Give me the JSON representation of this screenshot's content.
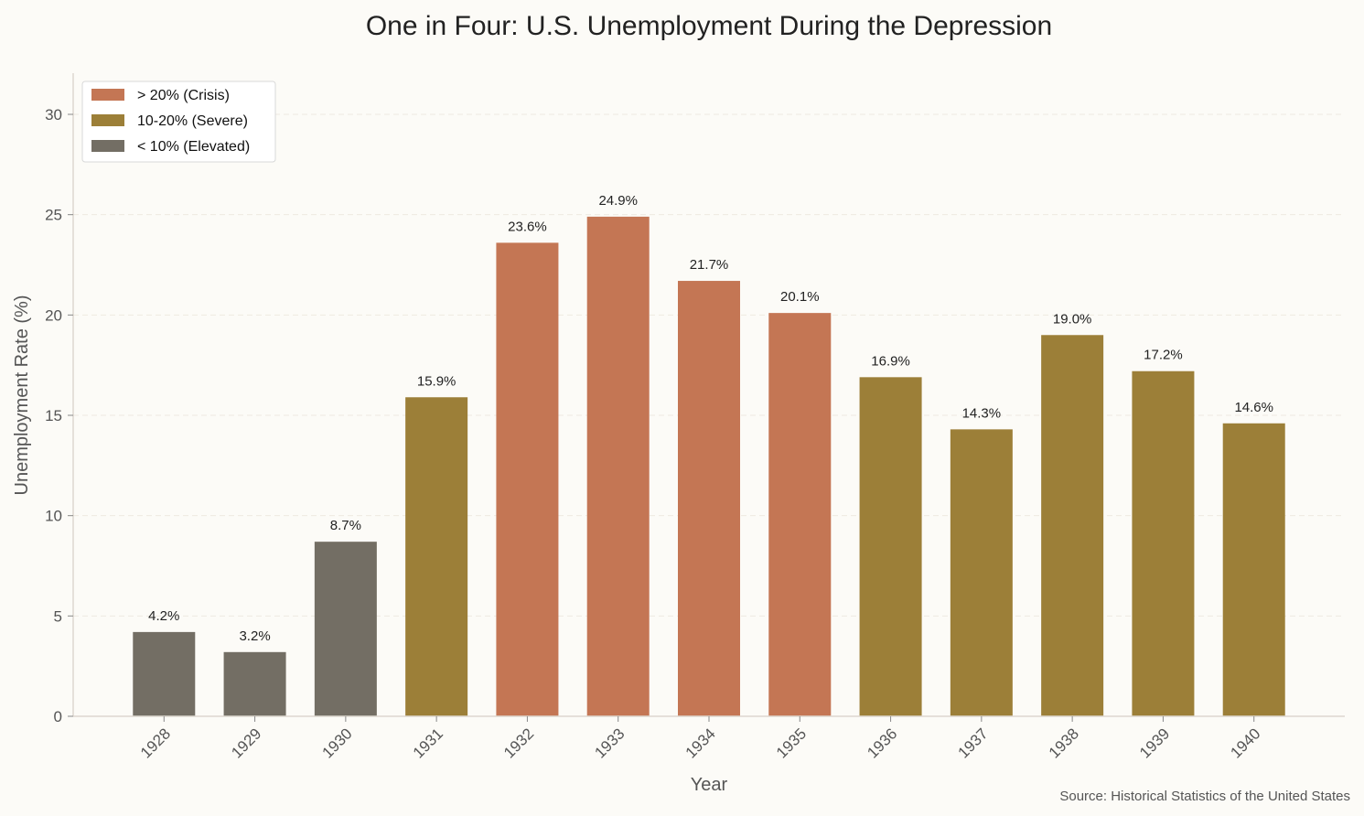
{
  "chart_data": {
    "type": "bar",
    "title": "One in Four: U.S. Unemployment During the Depression",
    "xlabel": "Year",
    "ylabel": "Unemployment Rate (%)",
    "source": "Source: Historical Statistics of the United States",
    "categories": [
      "1928",
      "1929",
      "1930",
      "1931",
      "1932",
      "1933",
      "1934",
      "1935",
      "1936",
      "1937",
      "1938",
      "1939",
      "1940"
    ],
    "values": [
      4.2,
      3.2,
      8.7,
      15.9,
      23.6,
      24.9,
      21.7,
      20.1,
      16.9,
      14.3,
      19.0,
      17.2,
      14.6
    ],
    "data_labels": [
      "4.2%",
      "3.2%",
      "8.7%",
      "15.9%",
      "23.6%",
      "24.9%",
      "21.7%",
      "20.1%",
      "16.9%",
      "14.3%",
      "19.0%",
      "17.2%",
      "14.6%"
    ],
    "ylim": [
      0,
      32
    ],
    "yticks": [
      0,
      5,
      10,
      15,
      20,
      25,
      30
    ],
    "grid": "y-dashed",
    "legend_placement": "top-left",
    "legend": [
      {
        "label": "> 20% (Crisis)",
        "color": "#C47654"
      },
      {
        "label": "10-20% (Severe)",
        "color": "#9C7F38"
      },
      {
        "label": "< 10% (Elevated)",
        "color": "#736E64"
      }
    ],
    "colors": {
      "background": "#FCFBF7",
      "crisis": "#C47654",
      "severe": "#9C7F38",
      "elevated": "#736E64"
    }
  }
}
